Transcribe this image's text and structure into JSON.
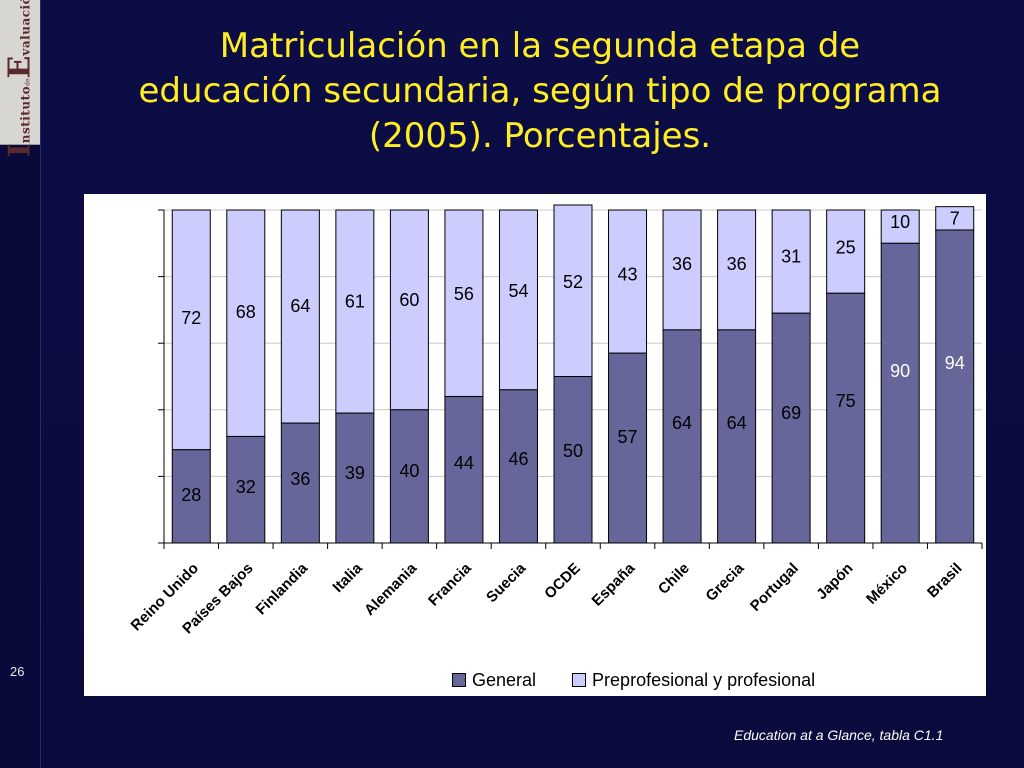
{
  "slide": {
    "title": "Matriculación en la segunda etapa de educación secundaria, según tipo de programa (2005). Porcentajes.",
    "number": "26",
    "source": "Education at a Glance, tabla C1.1",
    "logo": {
      "initial_1": "I",
      "word_1": "nstituto",
      "small": "de",
      "initial_2": "E",
      "word_2": "valuación"
    }
  },
  "colors": {
    "background": "#0d0d46",
    "title": "#ffee22",
    "general": "#66669a",
    "preprofesional": "#ccccff"
  },
  "chart_data": {
    "type": "bar",
    "stacked": true,
    "categories": [
      "Reino Unido",
      "Países Bajos",
      "Finlandia",
      "Italia",
      "Alemania",
      "Francia",
      "Suecia",
      "OCDE",
      "España",
      "Chile",
      "Grecia",
      "Portugal",
      "Japón",
      "México",
      "Brasil"
    ],
    "series": [
      {
        "name": "General",
        "values": [
          28,
          32,
          36,
          39,
          40,
          44,
          46,
          50,
          57,
          64,
          64,
          69,
          75,
          90,
          94
        ]
      },
      {
        "name": "Preprofesional y profesional",
        "values": [
          72,
          68,
          64,
          61,
          60,
          56,
          54,
          52,
          43,
          36,
          36,
          31,
          25,
          10,
          7
        ]
      }
    ],
    "ylim": [
      0,
      100
    ],
    "grid": true,
    "legend": "bottom"
  }
}
